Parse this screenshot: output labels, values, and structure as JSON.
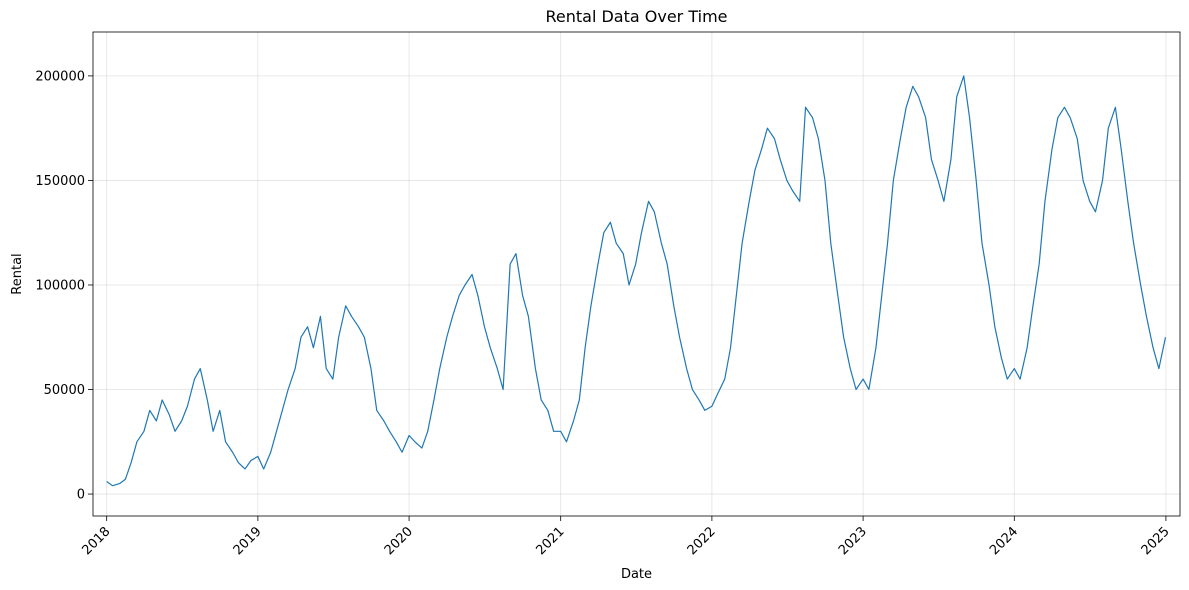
{
  "chart_data": {
    "type": "line",
    "title": "Rental Data Over Time",
    "xlabel": "Date",
    "ylabel": "Rental",
    "x_range": [
      "2017-11-29",
      "2025-02-04"
    ],
    "ylim": [
      -10500,
      221000
    ],
    "grid": true,
    "legend": "none",
    "color": "#1f77b4",
    "x_ticks": [
      {
        "date": "2018-01-01",
        "label": "2018"
      },
      {
        "date": "2019-01-01",
        "label": "2019"
      },
      {
        "date": "2020-01-01",
        "label": "2020"
      },
      {
        "date": "2021-01-01",
        "label": "2021"
      },
      {
        "date": "2022-01-01",
        "label": "2022"
      },
      {
        "date": "2023-01-01",
        "label": "2023"
      },
      {
        "date": "2024-01-01",
        "label": "2024"
      },
      {
        "date": "2025-01-01",
        "label": "2025"
      }
    ],
    "y_ticks": [
      {
        "value": 0,
        "label": "0"
      },
      {
        "value": 50000,
        "label": "50000"
      },
      {
        "value": 100000,
        "label": "100000"
      },
      {
        "value": 150000,
        "label": "150000"
      },
      {
        "value": 200000,
        "label": "200000"
      }
    ],
    "series": [
      {
        "x": [
          "2018-01-01",
          "2018-01-15",
          "2018-02-01",
          "2018-02-15",
          "2018-03-01",
          "2018-03-15",
          "2018-04-01",
          "2018-04-15",
          "2018-05-01",
          "2018-05-15",
          "2018-06-01",
          "2018-06-15",
          "2018-07-01",
          "2018-07-15",
          "2018-08-01",
          "2018-08-15",
          "2018-09-01",
          "2018-09-15",
          "2018-10-01",
          "2018-10-15",
          "2018-11-01",
          "2018-11-15",
          "2018-12-01",
          "2018-12-15",
          "2019-01-01",
          "2019-01-15",
          "2019-02-01",
          "2019-02-15",
          "2019-03-01",
          "2019-03-15",
          "2019-04-01",
          "2019-04-15",
          "2019-05-01",
          "2019-05-15",
          "2019-06-01",
          "2019-06-15",
          "2019-07-01",
          "2019-07-15",
          "2019-08-01",
          "2019-08-15",
          "2019-09-01",
          "2019-09-15",
          "2019-10-01",
          "2019-10-15",
          "2019-11-01",
          "2019-11-15",
          "2019-12-01",
          "2019-12-15",
          "2020-01-01",
          "2020-01-15",
          "2020-02-01",
          "2020-02-15",
          "2020-03-01",
          "2020-03-15",
          "2020-04-01",
          "2020-04-15",
          "2020-05-01",
          "2020-05-15",
          "2020-06-01",
          "2020-06-15",
          "2020-07-01",
          "2020-07-15",
          "2020-08-01",
          "2020-08-15",
          "2020-09-01",
          "2020-09-15",
          "2020-10-01",
          "2020-10-15",
          "2020-11-01",
          "2020-11-15",
          "2020-12-01",
          "2020-12-15",
          "2021-01-01",
          "2021-01-15",
          "2021-02-01",
          "2021-02-15",
          "2021-03-01",
          "2021-03-15",
          "2021-04-01",
          "2021-04-15",
          "2021-05-01",
          "2021-05-15",
          "2021-06-01",
          "2021-06-15",
          "2021-07-01",
          "2021-07-15",
          "2021-08-01",
          "2021-08-15",
          "2021-09-01",
          "2021-09-15",
          "2021-10-01",
          "2021-10-15",
          "2021-11-01",
          "2021-11-15",
          "2021-12-01",
          "2021-12-15",
          "2022-01-01",
          "2022-01-15",
          "2022-02-01",
          "2022-02-15",
          "2022-03-01",
          "2022-03-15",
          "2022-04-01",
          "2022-04-15",
          "2022-05-01",
          "2022-05-15",
          "2022-06-01",
          "2022-06-15",
          "2022-07-01",
          "2022-07-15",
          "2022-08-01",
          "2022-08-15",
          "2022-09-01",
          "2022-09-15",
          "2022-10-01",
          "2022-10-15",
          "2022-11-01",
          "2022-11-15",
          "2022-12-01",
          "2022-12-15",
          "2023-01-01",
          "2023-01-15",
          "2023-02-01",
          "2023-02-15",
          "2023-03-01",
          "2023-03-15",
          "2023-04-01",
          "2023-04-15",
          "2023-05-01",
          "2023-05-15",
          "2023-06-01",
          "2023-06-15",
          "2023-07-01",
          "2023-07-15",
          "2023-08-01",
          "2023-08-15",
          "2023-09-01",
          "2023-09-15",
          "2023-10-01",
          "2023-10-15",
          "2023-11-01",
          "2023-11-15",
          "2023-12-01",
          "2023-12-15",
          "2024-01-01",
          "2024-01-15",
          "2024-02-01",
          "2024-02-15",
          "2024-03-01",
          "2024-03-15",
          "2024-04-01",
          "2024-04-15",
          "2024-05-01",
          "2024-05-15",
          "2024-06-01",
          "2024-06-15",
          "2024-07-01",
          "2024-07-15",
          "2024-08-01",
          "2024-08-15",
          "2024-09-01",
          "2024-09-15",
          "2024-10-01",
          "2024-10-15",
          "2024-11-01",
          "2024-11-15",
          "2024-12-01",
          "2024-12-15",
          "2024-12-31"
        ],
        "values": [
          6000,
          4000,
          5000,
          7000,
          15000,
          25000,
          30000,
          40000,
          35000,
          45000,
          38000,
          30000,
          35000,
          42000,
          55000,
          60000,
          45000,
          30000,
          40000,
          25000,
          20000,
          15000,
          12000,
          16000,
          18000,
          12000,
          20000,
          30000,
          40000,
          50000,
          60000,
          75000,
          80000,
          70000,
          85000,
          60000,
          55000,
          75000,
          90000,
          85000,
          80000,
          75000,
          60000,
          40000,
          35000,
          30000,
          25000,
          20000,
          28000,
          25000,
          22000,
          30000,
          45000,
          60000,
          75000,
          85000,
          95000,
          100000,
          105000,
          95000,
          80000,
          70000,
          60000,
          50000,
          110000,
          115000,
          95000,
          85000,
          60000,
          45000,
          40000,
          30000,
          30000,
          25000,
          35000,
          45000,
          70000,
          90000,
          110000,
          125000,
          130000,
          120000,
          115000,
          100000,
          110000,
          125000,
          140000,
          135000,
          120000,
          110000,
          90000,
          75000,
          60000,
          50000,
          45000,
          40000,
          42000,
          48000,
          55000,
          70000,
          95000,
          120000,
          140000,
          155000,
          165000,
          175000,
          170000,
          160000,
          150000,
          145000,
          140000,
          185000,
          180000,
          170000,
          150000,
          120000,
          95000,
          75000,
          60000,
          50000,
          55000,
          50000,
          70000,
          95000,
          120000,
          150000,
          170000,
          185000,
          195000,
          190000,
          180000,
          160000,
          150000,
          140000,
          160000,
          190000,
          200000,
          180000,
          150000,
          120000,
          100000,
          80000,
          65000,
          55000,
          60000,
          55000,
          70000,
          90000,
          110000,
          140000,
          165000,
          180000,
          185000,
          180000,
          170000,
          150000,
          140000,
          135000,
          150000,
          175000,
          185000,
          165000,
          140000,
          120000,
          100000,
          85000,
          70000,
          60000,
          75000
        ]
      }
    ]
  }
}
